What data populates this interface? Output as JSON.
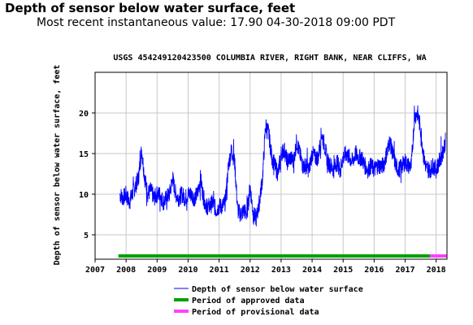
{
  "header": {
    "title": "Depth of sensor below water surface, feet",
    "subtitle": "Most recent instantaneous value: 17.90 04-30-2018   09:00 PDT"
  },
  "chart_data": {
    "type": "line",
    "title": "USGS 454249120423500 COLUMBIA RIVER, RIGHT BANK, NEAR CLIFFS, WA",
    "ylabel": "Depth of sensor below water surface, feet",
    "xlabel": "",
    "xlim": [
      2007.0,
      2018.35
    ],
    "ylim": [
      2,
      25
    ],
    "x_ticks": [
      "2007",
      "2008",
      "2009",
      "2010",
      "2011",
      "2012",
      "2013",
      "2014",
      "2015",
      "2016",
      "2017",
      "2018"
    ],
    "y_ticks": [
      "5",
      "10",
      "15",
      "20"
    ],
    "grid": true,
    "legend_position": "bottom",
    "colors": {
      "series": "#0000ff",
      "approved": "#00a000",
      "provisional": "#ff40ff",
      "grid": "#c8c8c8"
    },
    "series": [
      {
        "name": "Depth of sensor below water surface",
        "x": [
          2007.8,
          2007.9,
          2008.0,
          2008.1,
          2008.2,
          2008.3,
          2008.4,
          2008.5,
          2008.6,
          2008.7,
          2008.8,
          2008.9,
          2009.0,
          2009.1,
          2009.2,
          2009.3,
          2009.4,
          2009.5,
          2009.6,
          2009.7,
          2009.8,
          2009.9,
          2010.0,
          2010.1,
          2010.2,
          2010.3,
          2010.4,
          2010.5,
          2010.6,
          2010.7,
          2010.8,
          2010.9,
          2011.0,
          2011.1,
          2011.2,
          2011.3,
          2011.4,
          2011.5,
          2011.6,
          2011.7,
          2011.8,
          2011.9,
          2012.0,
          2012.1,
          2012.2,
          2012.3,
          2012.4,
          2012.5,
          2012.6,
          2012.7,
          2012.8,
          2012.9,
          2013.0,
          2013.1,
          2013.2,
          2013.3,
          2013.4,
          2013.5,
          2013.6,
          2013.7,
          2013.8,
          2013.9,
          2014.0,
          2014.1,
          2014.2,
          2014.3,
          2014.4,
          2014.5,
          2014.6,
          2014.7,
          2014.8,
          2014.9,
          2015.0,
          2015.1,
          2015.2,
          2015.3,
          2015.4,
          2015.5,
          2015.6,
          2015.7,
          2015.8,
          2015.9,
          2016.0,
          2016.1,
          2016.2,
          2016.3,
          2016.4,
          2016.5,
          2016.6,
          2016.7,
          2016.8,
          2016.9,
          2017.0,
          2017.1,
          2017.2,
          2017.3,
          2017.4,
          2017.5,
          2017.6,
          2017.7,
          2017.8,
          2017.9,
          2018.0,
          2018.1,
          2018.2,
          2018.3
        ],
        "y": [
          10.0,
          9.5,
          10.0,
          9.0,
          10.0,
          11.0,
          12.0,
          15.5,
          12.0,
          10.0,
          10.5,
          9.5,
          10.0,
          10.0,
          9.0,
          9.5,
          10.0,
          12.0,
          10.0,
          9.5,
          10.0,
          9.5,
          10.0,
          10.0,
          9.5,
          10.0,
          12.0,
          9.5,
          8.5,
          8.5,
          9.0,
          8.0,
          8.5,
          8.5,
          9.0,
          13.5,
          15.5,
          14.0,
          8.0,
          7.5,
          8.0,
          7.5,
          11.0,
          7.5,
          7.0,
          9.0,
          12.0,
          18.5,
          17.5,
          14.5,
          13.5,
          12.5,
          15.0,
          15.5,
          14.0,
          14.5,
          14.0,
          16.5,
          15.0,
          13.5,
          13.5,
          13.0,
          15.0,
          14.5,
          14.5,
          17.5,
          16.0,
          14.0,
          13.5,
          13.0,
          14.0,
          13.0,
          14.5,
          15.0,
          14.5,
          14.0,
          15.0,
          14.5,
          14.5,
          13.5,
          13.0,
          13.5,
          13.0,
          13.5,
          13.5,
          13.5,
          15.0,
          16.5,
          15.0,
          13.5,
          13.0,
          13.5,
          14.0,
          13.5,
          13.5,
          19.5,
          20.0,
          18.0,
          14.5,
          13.0,
          13.0,
          13.5,
          13.0,
          14.0,
          15.0,
          16.5
        ]
      }
    ],
    "approved_period": [
      2007.75,
      2017.8
    ],
    "provisional_period": [
      2017.8,
      2018.35
    ],
    "legend": [
      {
        "key": "series",
        "label": "Depth of sensor below water surface"
      },
      {
        "key": "approved",
        "label": "Period of approved data"
      },
      {
        "key": "provisional",
        "label": "Period of provisional data"
      }
    ]
  }
}
